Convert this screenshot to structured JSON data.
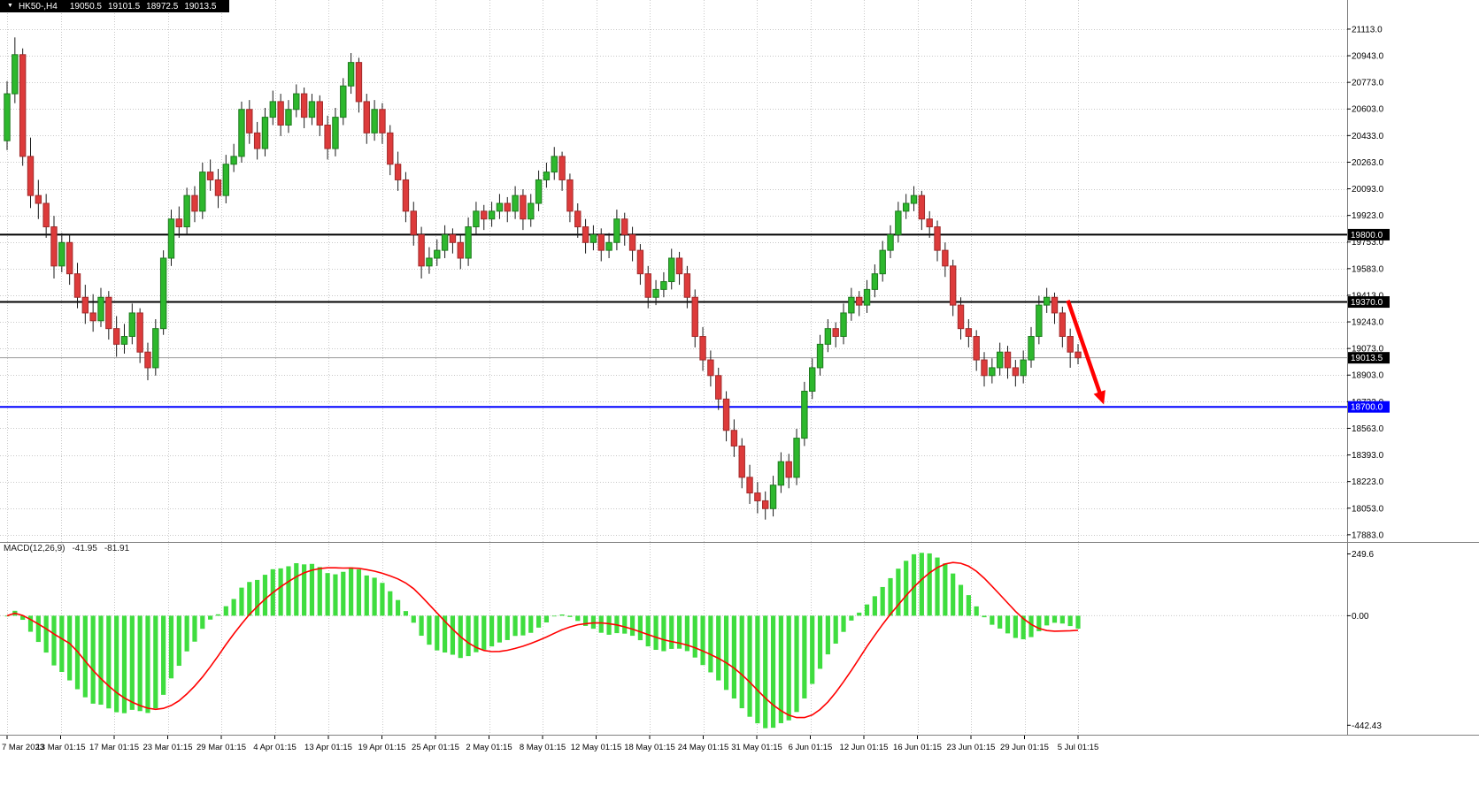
{
  "title_bar": {
    "expander": "▼",
    "symbol_timeframe": "HK50-,H4",
    "open": "19050.5",
    "high": "19101.5",
    "low": "18972.5",
    "close": "19013.5"
  },
  "colors": {
    "background": "#FFFFFF",
    "grid": "#C8C8C8",
    "bull": "#2DB82D",
    "bull_border": "#1E7A1E",
    "bear": "#DD3B3B",
    "bear_border": "#A12A2A",
    "wick": "#1A1A1A",
    "axis_text": "#000000",
    "separator": "#808080",
    "bid_line": "#999999",
    "label_text": "#FFFFFF"
  },
  "chart_data": {
    "type": "candlestick",
    "symbol": "HK50-",
    "timeframe": "H4",
    "grid": true,
    "y_axis": {
      "top_price": 21299,
      "bottom_price": 17837,
      "tick_step": 170,
      "tick_labels": [
        "21113.0",
        "20943.0",
        "20773.0",
        "20603.0",
        "20433.0",
        "20263.0",
        "20093.0",
        "19923.0",
        "19753.0",
        "19583.0",
        "19413.0",
        "19243.0",
        "19073.0",
        "18903.0",
        "18733.0",
        "18563.0",
        "18393.0",
        "18223.0",
        "18053.0",
        "17883.0"
      ]
    },
    "x_axis": {
      "labels": [
        "7 Mar 2023",
        "13 Mar 01:15",
        "17 Mar 01:15",
        "23 Mar 01:15",
        "29 Mar 01:15",
        "4 Apr 01:15",
        "13 Apr 01:15",
        "19 Apr 01:15",
        "25 Apr 01:15",
        "2 May 01:15",
        "8 May 01:15",
        "12 May 01:15",
        "18 May 01:15",
        "24 May 01:15",
        "31 May 01:15",
        "6 Jun 01:15",
        "12 Jun 01:15",
        "16 Jun 01:15",
        "23 Jun 01:15",
        "29 Jun 01:15",
        "5 Jul 01:15"
      ]
    },
    "horizontal_lines": [
      {
        "price": 19800.0,
        "label": "19800.0",
        "color": "#000000"
      },
      {
        "price": 19370.0,
        "label": "19370.0",
        "color": "#000000"
      },
      {
        "price": 18700.0,
        "label": "18700.0",
        "color": "#0000FF"
      }
    ],
    "current_price": {
      "price": 19013.5,
      "label": "19013.5",
      "box_color": "#000000"
    },
    "arrow_annotation": {
      "from_candle": 135.7,
      "from_price": 19380,
      "to_candle": 140.3,
      "to_price": 18715,
      "color": "#FF0000"
    },
    "candles": [
      [
        20400,
        20780,
        20340,
        20700
      ],
      [
        20700,
        21060,
        20640,
        20950
      ],
      [
        20950,
        20990,
        20240,
        20300
      ],
      [
        20300,
        20420,
        19970,
        20050
      ],
      [
        20050,
        20150,
        19900,
        20000
      ],
      [
        20000,
        20060,
        19780,
        19850
      ],
      [
        19850,
        19920,
        19520,
        19600
      ],
      [
        19600,
        19810,
        19560,
        19750
      ],
      [
        19750,
        19800,
        19480,
        19550
      ],
      [
        19550,
        19620,
        19330,
        19400
      ],
      [
        19400,
        19480,
        19230,
        19300
      ],
      [
        19300,
        19420,
        19180,
        19250
      ],
      [
        19250,
        19460,
        19210,
        19400
      ],
      [
        19400,
        19440,
        19130,
        19200
      ],
      [
        19200,
        19280,
        19020,
        19100
      ],
      [
        19100,
        19230,
        19040,
        19150
      ],
      [
        19150,
        19360,
        19100,
        19300
      ],
      [
        19300,
        19330,
        18980,
        19050
      ],
      [
        19050,
        19110,
        18870,
        18950
      ],
      [
        18950,
        19260,
        18900,
        19200
      ],
      [
        19200,
        19700,
        19160,
        19650
      ],
      [
        19650,
        19960,
        19600,
        19900
      ],
      [
        19900,
        19980,
        19780,
        19850
      ],
      [
        19850,
        20100,
        19800,
        20050
      ],
      [
        20050,
        20110,
        19880,
        19950
      ],
      [
        19950,
        20260,
        19900,
        20200
      ],
      [
        20200,
        20280,
        20080,
        20150
      ],
      [
        20150,
        20220,
        19970,
        20050
      ],
      [
        20050,
        20310,
        20000,
        20250
      ],
      [
        20250,
        20380,
        20200,
        20300
      ],
      [
        20300,
        20650,
        20260,
        20600
      ],
      [
        20600,
        20660,
        20380,
        20450
      ],
      [
        20450,
        20520,
        20280,
        20350
      ],
      [
        20350,
        20610,
        20300,
        20550
      ],
      [
        20550,
        20720,
        20500,
        20650
      ],
      [
        20650,
        20700,
        20430,
        20500
      ],
      [
        20500,
        20660,
        20450,
        20600
      ],
      [
        20600,
        20760,
        20550,
        20700
      ],
      [
        20700,
        20740,
        20480,
        20550
      ],
      [
        20550,
        20700,
        20500,
        20650
      ],
      [
        20650,
        20690,
        20430,
        20500
      ],
      [
        20500,
        20560,
        20280,
        20350
      ],
      [
        20350,
        20610,
        20300,
        20550
      ],
      [
        20550,
        20800,
        20500,
        20750
      ],
      [
        20750,
        20960,
        20700,
        20900
      ],
      [
        20900,
        20930,
        20580,
        20650
      ],
      [
        20650,
        20700,
        20380,
        20450
      ],
      [
        20450,
        20660,
        20400,
        20600
      ],
      [
        20600,
        20640,
        20380,
        20450
      ],
      [
        20450,
        20500,
        20180,
        20250
      ],
      [
        20250,
        20330,
        20080,
        20150
      ],
      [
        20150,
        20200,
        19880,
        19950
      ],
      [
        19950,
        20010,
        19730,
        19800
      ],
      [
        19800,
        19850,
        19520,
        19600
      ],
      [
        19600,
        19720,
        19550,
        19650
      ],
      [
        19650,
        19770,
        19600,
        19700
      ],
      [
        19700,
        19860,
        19650,
        19800
      ],
      [
        19800,
        19840,
        19680,
        19750
      ],
      [
        19750,
        19800,
        19580,
        19650
      ],
      [
        19650,
        19910,
        19600,
        19850
      ],
      [
        19850,
        20010,
        19800,
        19950
      ],
      [
        19950,
        19990,
        19830,
        19900
      ],
      [
        19900,
        20010,
        19850,
        19950
      ],
      [
        19950,
        20060,
        19900,
        20000
      ],
      [
        20000,
        20040,
        19880,
        19950
      ],
      [
        19950,
        20110,
        19900,
        20050
      ],
      [
        20050,
        20090,
        19830,
        19900
      ],
      [
        19900,
        20060,
        19850,
        20000
      ],
      [
        20000,
        20210,
        19950,
        20150
      ],
      [
        20150,
        20260,
        20100,
        20200
      ],
      [
        20200,
        20360,
        20150,
        20300
      ],
      [
        20300,
        20330,
        20080,
        20150
      ],
      [
        20150,
        20190,
        19880,
        19950
      ],
      [
        19950,
        20000,
        19780,
        19850
      ],
      [
        19850,
        19900,
        19680,
        19750
      ],
      [
        19750,
        19860,
        19700,
        19800
      ],
      [
        19800,
        19840,
        19630,
        19700
      ],
      [
        19700,
        19810,
        19650,
        19750
      ],
      [
        19750,
        19960,
        19700,
        19900
      ],
      [
        19900,
        19940,
        19730,
        19800
      ],
      [
        19800,
        19850,
        19630,
        19700
      ],
      [
        19700,
        19740,
        19480,
        19550
      ],
      [
        19550,
        19600,
        19330,
        19400
      ],
      [
        19400,
        19510,
        19350,
        19450
      ],
      [
        19450,
        19560,
        19400,
        19500
      ],
      [
        19500,
        19710,
        19450,
        19650
      ],
      [
        19650,
        19690,
        19480,
        19550
      ],
      [
        19550,
        19600,
        19330,
        19400
      ],
      [
        19400,
        19450,
        19080,
        19150
      ],
      [
        19150,
        19210,
        18930,
        19000
      ],
      [
        19000,
        19060,
        18830,
        18900
      ],
      [
        18900,
        18950,
        18680,
        18750
      ],
      [
        18750,
        18800,
        18480,
        18550
      ],
      [
        18550,
        18620,
        18380,
        18450
      ],
      [
        18450,
        18500,
        18180,
        18250
      ],
      [
        18250,
        18330,
        18080,
        18150
      ],
      [
        18150,
        18220,
        18020,
        18100
      ],
      [
        18100,
        18160,
        17980,
        18050
      ],
      [
        18050,
        18260,
        18000,
        18200
      ],
      [
        18200,
        18410,
        18150,
        18350
      ],
      [
        18350,
        18400,
        18180,
        18250
      ],
      [
        18250,
        18560,
        18200,
        18500
      ],
      [
        18500,
        18860,
        18450,
        18800
      ],
      [
        18800,
        19010,
        18750,
        18950
      ],
      [
        18950,
        19160,
        18900,
        19100
      ],
      [
        19100,
        19260,
        19050,
        19200
      ],
      [
        19200,
        19240,
        19080,
        19150
      ],
      [
        19150,
        19360,
        19100,
        19300
      ],
      [
        19300,
        19460,
        19250,
        19400
      ],
      [
        19400,
        19440,
        19280,
        19350
      ],
      [
        19350,
        19510,
        19300,
        19450
      ],
      [
        19450,
        19610,
        19400,
        19550
      ],
      [
        19550,
        19760,
        19500,
        19700
      ],
      [
        19700,
        19860,
        19650,
        19800
      ],
      [
        19800,
        20010,
        19750,
        19950
      ],
      [
        19950,
        20060,
        19900,
        20000
      ],
      [
        20000,
        20110,
        19950,
        20050
      ],
      [
        20050,
        20080,
        19830,
        19900
      ],
      [
        19900,
        19950,
        19780,
        19850
      ],
      [
        19850,
        19890,
        19630,
        19700
      ],
      [
        19700,
        19750,
        19530,
        19600
      ],
      [
        19600,
        19640,
        19280,
        19350
      ],
      [
        19350,
        19400,
        19130,
        19200
      ],
      [
        19200,
        19260,
        19080,
        19150
      ],
      [
        19150,
        19190,
        18930,
        19000
      ],
      [
        19000,
        19050,
        18830,
        18900
      ],
      [
        18900,
        19010,
        18850,
        18950
      ],
      [
        18950,
        19110,
        18900,
        19050
      ],
      [
        19050,
        19090,
        18880,
        18950
      ],
      [
        18950,
        19000,
        18830,
        18900
      ],
      [
        18900,
        19060,
        18850,
        19000
      ],
      [
        19000,
        19210,
        18950,
        19150
      ],
      [
        19150,
        19410,
        19100,
        19350
      ],
      [
        19350,
        19460,
        19300,
        19400
      ],
      [
        19400,
        19430,
        19230,
        19300
      ],
      [
        19300,
        19340,
        19080,
        19150
      ],
      [
        19150,
        19200,
        18950,
        19050
      ],
      [
        19050.5,
        19101.5,
        18972.5,
        19013.5
      ]
    ],
    "macd": {
      "label": "MACD(12,26,9)",
      "main_value": "-41.95",
      "signal_value": "-81.91",
      "fast": 12,
      "slow": 26,
      "signal": 9,
      "scale_max": 280,
      "scale_min": -470,
      "axis_ticks": [
        {
          "value": 249.6,
          "label": "249.6"
        },
        {
          "value": 0,
          "label": "0.00"
        },
        {
          "value": -442.43,
          "label": "-442.43"
        }
      ],
      "histogram_color": "#3FDD3F",
      "signal_color": "#FF0000"
    }
  }
}
